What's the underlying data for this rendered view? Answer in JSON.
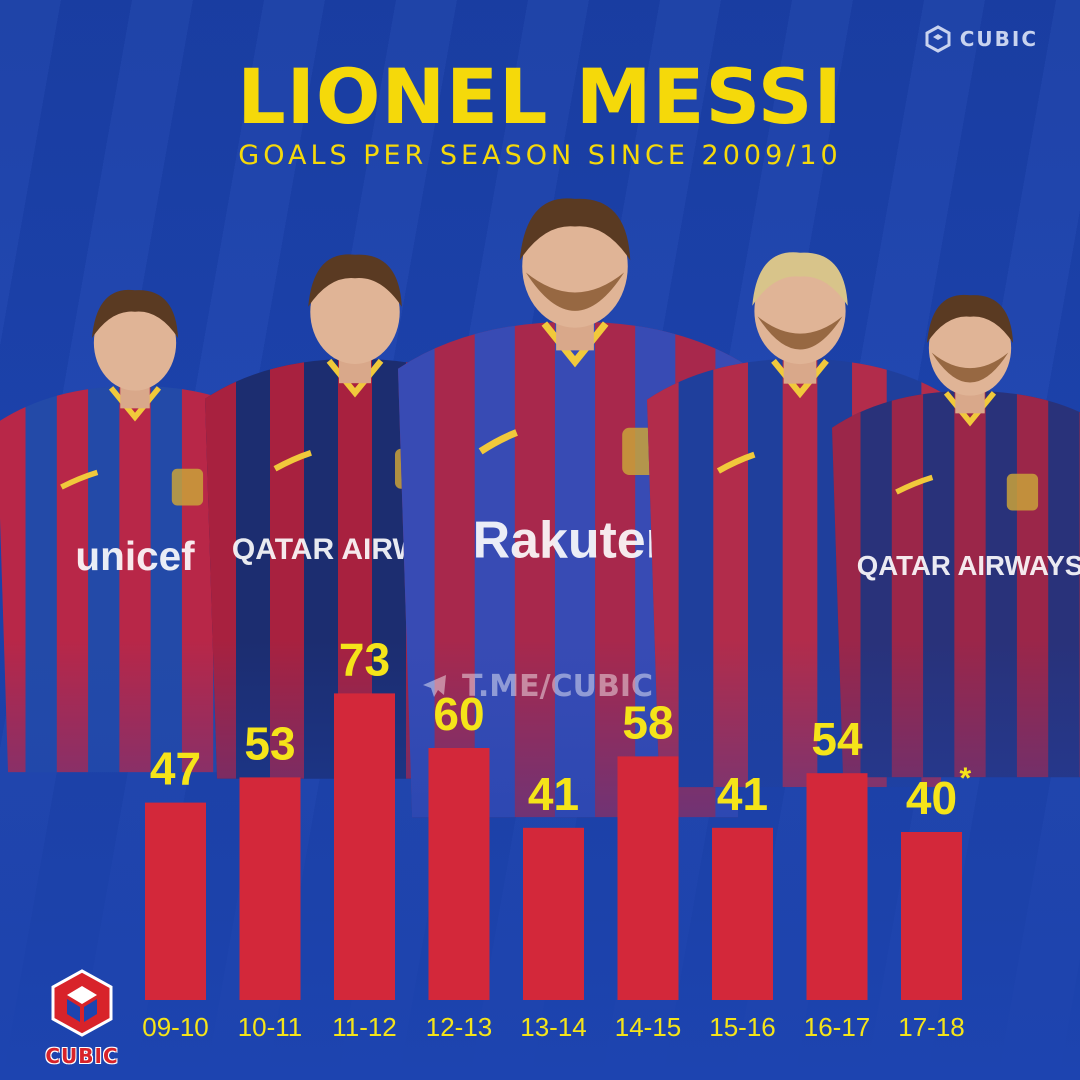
{
  "header": {
    "title": "LIONEL MESSI",
    "subtitle": "GOALS PER SEASON SINCE 2009/10",
    "brand": "CUBIC"
  },
  "watermark": {
    "text": "T.ME/CUBIC",
    "icon": "telegram-icon"
  },
  "footer": {
    "brand": "CUBIC",
    "icon": "cube-logo-icon"
  },
  "colors": {
    "background": "#1d44b0",
    "bar": "#d3283a",
    "label": "#f5e419",
    "stripe_red": "#b5203e",
    "stripe_blue": "#1e3f9e"
  },
  "jerseys": [
    {
      "sponsor": "unicef",
      "primary": "#c9233d",
      "secondary": "#234aa8"
    },
    {
      "sponsor": "QATAR AIRWAYS",
      "primary": "#b8203a",
      "secondary": "#1c2d70"
    },
    {
      "sponsor": "Rakuten",
      "primary": "#2b4fc0",
      "secondary": "#a8284c"
    },
    {
      "sponsor": "",
      "primary": "#c22a42",
      "secondary": "#1f3f9c"
    },
    {
      "sponsor": "QATAR AIRWAYS",
      "primary": "#a72544",
      "secondary": "#29327a"
    }
  ],
  "chart_data": {
    "type": "bar",
    "categories": [
      "09-10",
      "10-11",
      "11-12",
      "12-13",
      "13-14",
      "14-15",
      "15-16",
      "16-17",
      "17-18"
    ],
    "values": [
      47,
      53,
      73,
      60,
      41,
      58,
      41,
      54,
      40
    ],
    "value_labels": [
      "47",
      "53",
      "73",
      "60",
      "41",
      "58",
      "41",
      "54",
      "40"
    ],
    "annotations": [
      {
        "category": "17-18",
        "text": "*"
      }
    ],
    "title": "LIONEL MESSI",
    "subtitle": "GOALS PER SEASON SINCE 2009/10",
    "xlabel": "",
    "ylabel": "",
    "ylim": [
      0,
      80
    ],
    "grid": false,
    "legend": "none"
  }
}
